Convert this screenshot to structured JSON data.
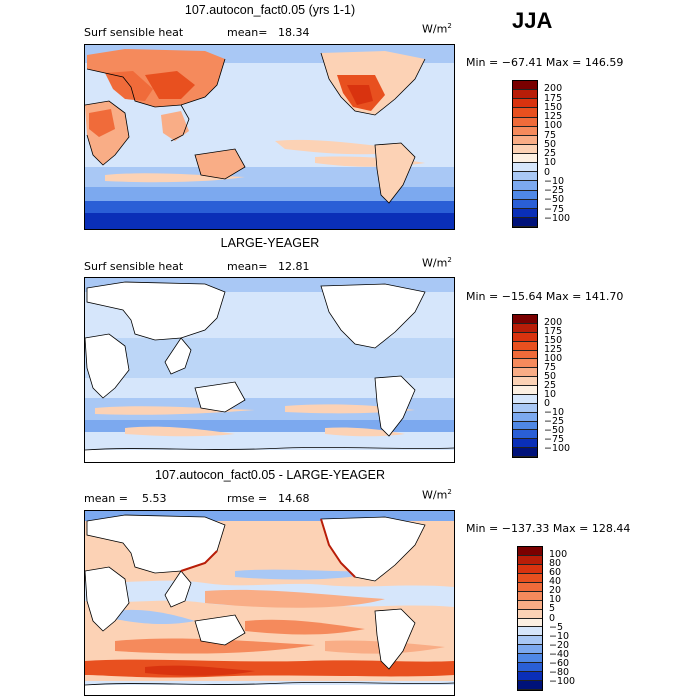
{
  "season": "JJA",
  "panels": [
    {
      "title": "107.autocon_fact0.05 (yrs 1-1)",
      "left_label": "Surf sensible heat",
      "mid_label": "mean=",
      "mid_value": "18.34",
      "unit": "W/m",
      "unit_exp": "2",
      "minmax": "Min = −67.41 Max = 146.59",
      "colorbar_labels": [
        "200",
        "175",
        "150",
        "125",
        "100",
        "75",
        "50",
        "25",
        "10",
        "0",
        "−10",
        "−25",
        "−50",
        "−75",
        "−100"
      ],
      "colorbar_colors": [
        "#7a0000",
        "#b81d08",
        "#d9330f",
        "#e8501f",
        "#f06b3a",
        "#f58a5c",
        "#f9ad86",
        "#fcd2b5",
        "#fdf0e2",
        "#d6e6fb",
        "#a9c8f5",
        "#7ca9ef",
        "#4f88e6",
        "#2a5fd6",
        "#0a2fb8",
        "#00127a"
      ]
    },
    {
      "title": "LARGE-YEAGER",
      "left_label": "Surf sensible heat",
      "mid_label": "mean=",
      "mid_value": "12.81",
      "unit": "W/m",
      "unit_exp": "2",
      "minmax": "Min = −15.64 Max = 141.70",
      "colorbar_labels": [
        "200",
        "175",
        "150",
        "125",
        "100",
        "75",
        "50",
        "25",
        "10",
        "0",
        "−10",
        "−25",
        "−50",
        "−75",
        "−100"
      ],
      "colorbar_colors": [
        "#7a0000",
        "#b81d08",
        "#d9330f",
        "#e8501f",
        "#f06b3a",
        "#f58a5c",
        "#f9ad86",
        "#fcd2b5",
        "#fdf0e2",
        "#d6e6fb",
        "#a9c8f5",
        "#7ca9ef",
        "#4f88e6",
        "#2a5fd6",
        "#0a2fb8",
        "#00127a"
      ]
    },
    {
      "title": "107.autocon_fact0.05 - LARGE-YEAGER",
      "left_label": "mean =",
      "left_value": "5.53",
      "mid_label": "rmse =",
      "mid_value": "14.68",
      "unit": "W/m",
      "unit_exp": "2",
      "minmax": "Min = −137.33 Max = 128.44",
      "colorbar_labels": [
        "100",
        "80",
        "60",
        "40",
        "20",
        "10",
        "5",
        "0",
        "−5",
        "−10",
        "−20",
        "−40",
        "−60",
        "−80",
        "−100"
      ],
      "colorbar_colors": [
        "#7a0000",
        "#b81d08",
        "#d9330f",
        "#e8501f",
        "#f06b3a",
        "#f58a5c",
        "#f9ad86",
        "#fcd2b5",
        "#fdf0e2",
        "#d6e6fb",
        "#a9c8f5",
        "#7ca9ef",
        "#4f88e6",
        "#2a5fd6",
        "#0a2fb8",
        "#00127a"
      ]
    }
  ]
}
